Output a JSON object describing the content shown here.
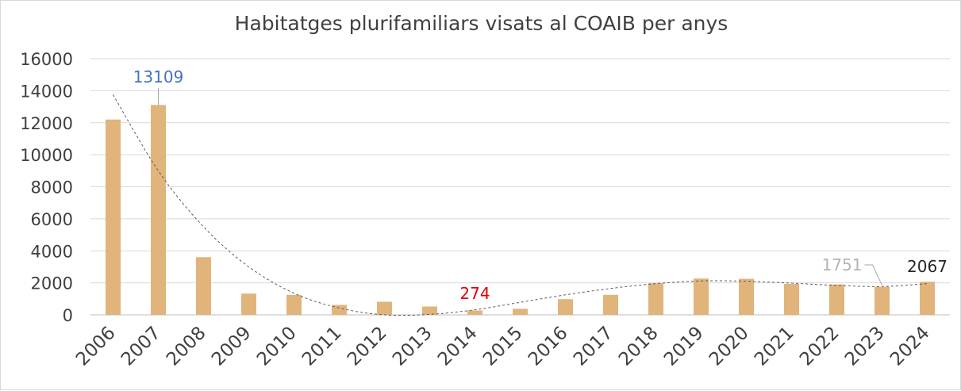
{
  "chart_data": {
    "type": "bar",
    "title": "Habitatges plurifamiliars visats al COAIB per anys",
    "categories": [
      "2006",
      "2007",
      "2008",
      "2009",
      "2010",
      "2011",
      "2012",
      "2013",
      "2014",
      "2015",
      "2016",
      "2017",
      "2018",
      "2019",
      "2020",
      "2021",
      "2022",
      "2023",
      "2024"
    ],
    "values": [
      12200,
      13109,
      3600,
      1330,
      1250,
      620,
      820,
      520,
      274,
      380,
      980,
      1250,
      1970,
      2270,
      2250,
      1930,
      1900,
      1751,
      2067
    ],
    "ylim": [
      0,
      16000
    ],
    "yticks": [
      "0",
      "2000",
      "4000",
      "6000",
      "8000",
      "10000",
      "12000",
      "14000",
      "16000"
    ],
    "grid": true,
    "legend": "none",
    "trendline": "polynomial",
    "trend_values": [
      13750,
      9000,
      5500,
      3000,
      1350,
      430,
      0,
      30,
      320,
      780,
      1250,
      1650,
      1950,
      2120,
      2100,
      1980,
      1840,
      1770,
      1950
    ],
    "data_labels": [
      {
        "category": "2007",
        "text": "13109",
        "color": "#4472c4"
      },
      {
        "category": "2014",
        "text": "274",
        "color": "#e00000"
      },
      {
        "category": "2023",
        "text": "1751",
        "color": "#b4b4b4"
      },
      {
        "category": "2024",
        "text": "2067",
        "color": "#262626"
      }
    ],
    "colors": {
      "bar": "#e0b47a",
      "grid": "#d9d9d9",
      "axis": "#bfbfbf",
      "trend": "#595959"
    }
  }
}
